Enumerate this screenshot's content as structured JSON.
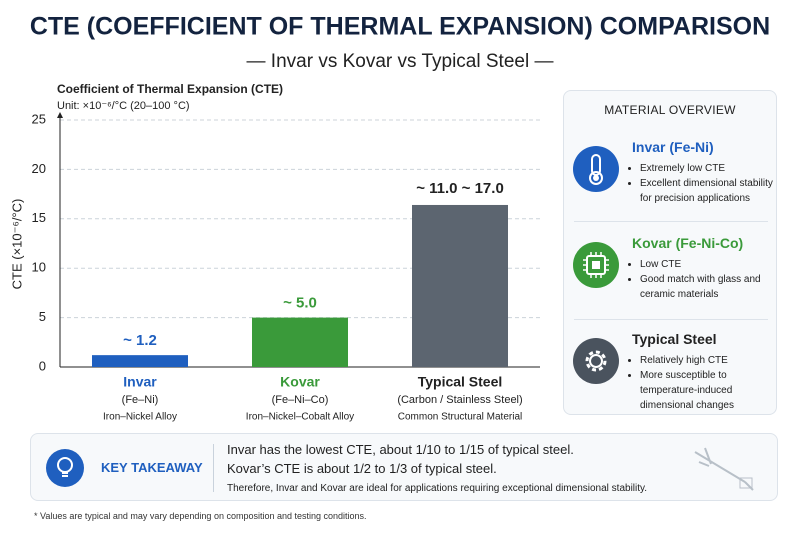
{
  "chart_data": {
    "type": "bar",
    "title": "CTE (COEFFICIENT OF THERMAL EXPANSION) COMPARISON",
    "subtitle": "— Invar vs Kovar vs Typical Steel —",
    "chart_heading": "Coefficient of Thermal Expansion (CTE)",
    "unit_note": "Unit: ×10⁻⁶/°C (20–100 °C)",
    "y_label": "CTE (×10⁻⁶/°C)",
    "categories": [
      "Invar",
      "Kovar",
      "Typical Steel"
    ],
    "category_formulas": [
      "(Fe–Ni)",
      "(Fe–Ni–Co)",
      "(Carbon / Stainless Steel)"
    ],
    "category_descriptions": [
      "Iron–Nickel Alloy",
      "Iron–Nickel–Cobalt Alloy",
      "Common Structural Material"
    ],
    "values": [
      1.2,
      5.0,
      16.4
    ],
    "value_labels": [
      "~ 1.2",
      "~ 5.0",
      null
    ],
    "annotations": [
      "~ 11.0 ~ 17.0"
    ],
    "colors": [
      "#1f5fbf",
      "#3a9a3a",
      "#5c6570"
    ],
    "label_colors": [
      "#1f5fbf",
      "#3a9a3a",
      "#222222"
    ],
    "ylim": [
      0,
      25
    ],
    "yticks": [
      0,
      5,
      10,
      15,
      20,
      25
    ],
    "grid": true
  },
  "overview": {
    "title": "MATERIAL OVERVIEW",
    "items": [
      {
        "title": "Invar (Fe-Ni)",
        "bullets": [
          "Extremely low CTE",
          "Excellent dimensional stability for precision applications"
        ]
      },
      {
        "title": "Kovar (Fe-Ni-Co)",
        "bullets": [
          "Low CTE",
          "Good match with glass and ceramic materials"
        ]
      },
      {
        "title": "Typical Steel",
        "bullets": [
          "Relatively high CTE",
          "More susceptible to temperature-induced dimensional changes"
        ]
      }
    ]
  },
  "takeaway": {
    "title": "KEY TAKEAWAY",
    "lines": [
      "Invar has the lowest CTE, about 1/10 to 1/15 of typical steel.",
      "Kovar’s CTE is about 1/2 to 1/3 of typical steel.",
      "Therefore, Invar and Kovar are ideal for applications requiring exceptional dimensional stability."
    ]
  },
  "footnote": "* Values are typical and may vary depending on composition and testing conditions."
}
